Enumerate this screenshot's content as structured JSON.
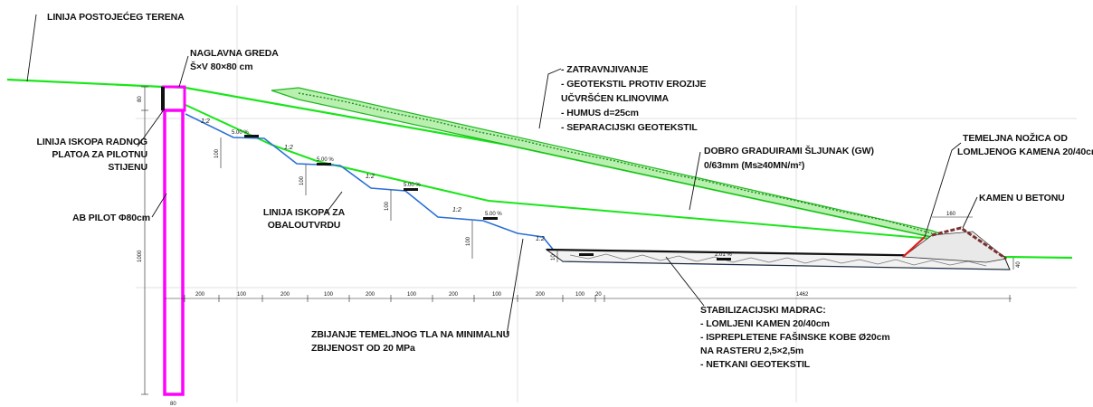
{
  "labels": {
    "terrain_line": "LINIJA POSTOJEĆEG TERENA",
    "head_beam_title": "NAGLAVNA GREDA",
    "head_beam_size": "Š×V 80×80 cm",
    "excavation_platform_1": "LINIJA ISKOPA RADNOG",
    "excavation_platform_2": "PLATOA ZA PILOTNU",
    "excavation_platform_3": "STIJENU",
    "pile": "AB PILOT Φ80cm",
    "excavation_bank_1": "LINIJA ISKOPA ZA",
    "excavation_bank_2": "OBALOUTVRDU",
    "compaction_1": "ZBIJANJE TEMELJNOG TLA NA MINIMALNU",
    "compaction_2": "ZBIJENOST OD 20 MPa",
    "layers_1": "- ZATRAVNJIVANJE",
    "layers_2": "- GEOTEKSTIL PROTIV EROZIJE",
    "layers_3": "UČVRŠĆEN KLINOVIMA",
    "layers_4": "- HUMUS d=25cm",
    "layers_5": "- SEPARACIJSKI GEOTEKSTIL",
    "gravel_1": "DOBRO GRADUIRAMI ŠLJUNAK (GW)",
    "gravel_2": "0/63mm (Ms≥40MN/m²)",
    "toe_1": "TEMELJNA NOŽICA OD",
    "toe_2": "LOMLJENOG KAMENA 20/40cm",
    "stone_concrete": "KAMEN U BETONU",
    "mattress_1": "STABILIZACIJSKI MADRAC:",
    "mattress_2": "- LOMLJENI KAMEN 20/40cm",
    "mattress_3": "- ISPREPLETENE FAŠINSKE KOBE Ø20cm",
    "mattress_4": "NA RASTERU 2,5×2,5m",
    "mattress_5": "- NETKANI GEOTEKSTIL"
  },
  "dimensions": {
    "bottom": [
      "200",
      "100",
      "200",
      "100",
      "200",
      "100",
      "200",
      "100",
      "200",
      "100",
      "20",
      "1462"
    ],
    "step_heights": [
      "100",
      "100",
      "100",
      "100",
      "10"
    ],
    "pile_length": "1000",
    "beam_height": "80",
    "pile_width": "80",
    "toe_width": "160",
    "toe_height": "40",
    "slopes": [
      "1:2",
      "1:2",
      "1:2",
      "1:2",
      "1:2"
    ],
    "berm_grades": [
      "5.00 %",
      "5.00 %",
      "5.00 %",
      "5.00 %",
      "2.01 %"
    ]
  },
  "colors": {
    "terrain": "#19e619",
    "excavation": "#2a6fd6",
    "pile": "#ff00ff",
    "grass": "#1fb81f",
    "toe": "#e01b1b"
  }
}
